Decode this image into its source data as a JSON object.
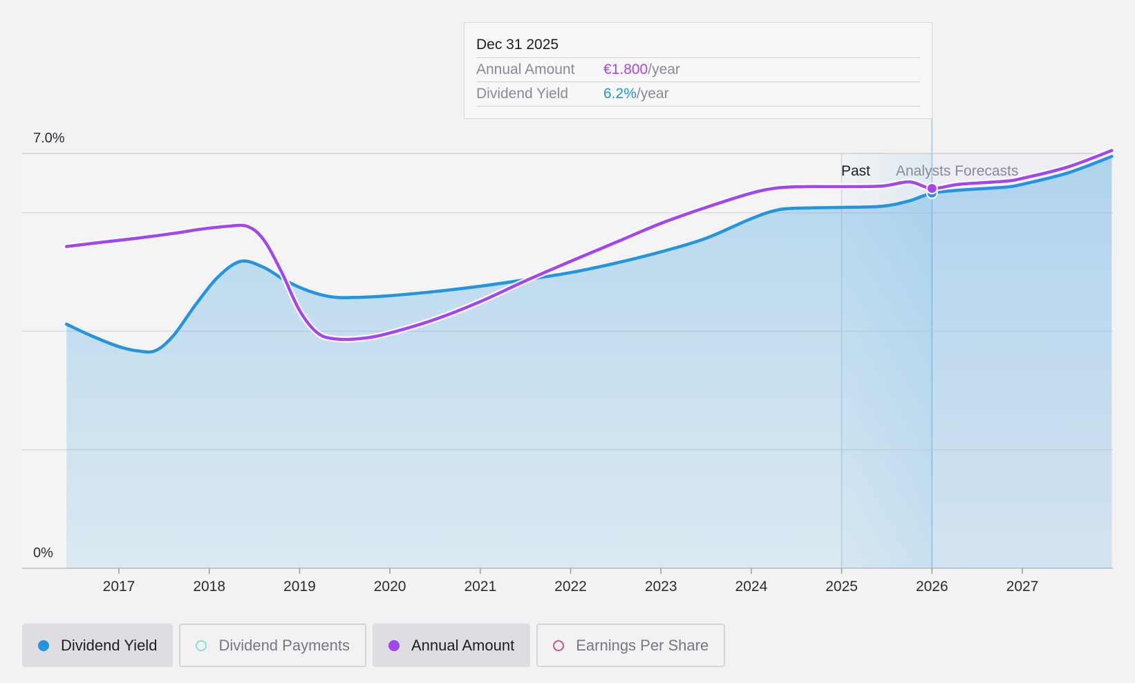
{
  "tooltip": {
    "date": "Dec 31 2025",
    "rows": [
      {
        "label": "Annual Amount",
        "value": "€1.800",
        "unit": "/year",
        "color": "#a445ed"
      },
      {
        "label": "Dividend Yield",
        "value": "6.2%",
        "unit": "/year",
        "color": "#2394df"
      }
    ]
  },
  "regions": {
    "past_label": "Past",
    "forecast_label": "Analysts Forecasts"
  },
  "legend": [
    {
      "label": "Dividend Yield",
      "active": true,
      "color": "#2394df",
      "filled": true
    },
    {
      "label": "Dividend Payments",
      "active": false,
      "color": "#7fe0d4",
      "filled": false
    },
    {
      "label": "Annual Amount",
      "active": true,
      "color": "#a445ed",
      "filled": true
    },
    {
      "label": "Earnings Per Share",
      "active": false,
      "color": "#d0508c",
      "filled": false
    }
  ],
  "chart_data": {
    "type": "area",
    "y_axis": {
      "min_label": "0%",
      "max_label": "7.0%",
      "ylim": [
        0,
        7.0
      ],
      "unit": "%"
    },
    "x_ticks": [
      "2017",
      "2018",
      "2019",
      "2020",
      "2021",
      "2022",
      "2023",
      "2024",
      "2025",
      "2026",
      "2027"
    ],
    "xlim": [
      2016.42,
      2027.99
    ],
    "past_forecast_divider": 2025.0,
    "highlight_x": 2026.0,
    "grid": true,
    "series": [
      {
        "name": "Dividend Yield",
        "color": "#2394df",
        "filled": true,
        "points": [
          [
            2016.42,
            4.12
          ],
          [
            2016.7,
            3.92
          ],
          [
            2017.0,
            3.74
          ],
          [
            2017.2,
            3.67
          ],
          [
            2017.4,
            3.67
          ],
          [
            2017.6,
            3.92
          ],
          [
            2017.85,
            4.45
          ],
          [
            2018.1,
            4.92
          ],
          [
            2018.35,
            5.18
          ],
          [
            2018.6,
            5.08
          ],
          [
            2018.85,
            4.85
          ],
          [
            2019.1,
            4.68
          ],
          [
            2019.35,
            4.58
          ],
          [
            2019.6,
            4.57
          ],
          [
            2020.0,
            4.6
          ],
          [
            2020.5,
            4.67
          ],
          [
            2021.0,
            4.76
          ],
          [
            2021.5,
            4.87
          ],
          [
            2022.0,
            4.99
          ],
          [
            2022.5,
            5.15
          ],
          [
            2023.0,
            5.34
          ],
          [
            2023.5,
            5.57
          ],
          [
            2024.0,
            5.9
          ],
          [
            2024.3,
            6.05
          ],
          [
            2024.6,
            6.08
          ],
          [
            2025.0,
            6.09
          ],
          [
            2025.45,
            6.11
          ],
          [
            2025.75,
            6.2
          ],
          [
            2026.0,
            6.33
          ],
          [
            2026.3,
            6.38
          ],
          [
            2026.8,
            6.43
          ],
          [
            2027.0,
            6.48
          ],
          [
            2027.5,
            6.67
          ],
          [
            2027.99,
            6.95
          ]
        ]
      },
      {
        "name": "Annual Amount",
        "color": "#a445ed",
        "filled": false,
        "points": [
          [
            2016.42,
            5.43
          ],
          [
            2016.8,
            5.5
          ],
          [
            2017.2,
            5.57
          ],
          [
            2017.6,
            5.65
          ],
          [
            2017.9,
            5.72
          ],
          [
            2018.2,
            5.77
          ],
          [
            2018.42,
            5.77
          ],
          [
            2018.6,
            5.55
          ],
          [
            2018.8,
            5.0
          ],
          [
            2019.0,
            4.35
          ],
          [
            2019.2,
            3.97
          ],
          [
            2019.4,
            3.87
          ],
          [
            2019.7,
            3.88
          ],
          [
            2020.0,
            3.97
          ],
          [
            2020.5,
            4.2
          ],
          [
            2021.0,
            4.5
          ],
          [
            2021.5,
            4.85
          ],
          [
            2022.0,
            5.18
          ],
          [
            2022.5,
            5.5
          ],
          [
            2023.0,
            5.82
          ],
          [
            2023.5,
            6.09
          ],
          [
            2024.0,
            6.33
          ],
          [
            2024.3,
            6.42
          ],
          [
            2024.6,
            6.44
          ],
          [
            2025.0,
            6.44
          ],
          [
            2025.45,
            6.45
          ],
          [
            2025.75,
            6.52
          ],
          [
            2026.0,
            6.41
          ],
          [
            2026.3,
            6.48
          ],
          [
            2026.8,
            6.53
          ],
          [
            2027.0,
            6.58
          ],
          [
            2027.5,
            6.77
          ],
          [
            2027.99,
            7.05
          ]
        ]
      }
    ]
  }
}
